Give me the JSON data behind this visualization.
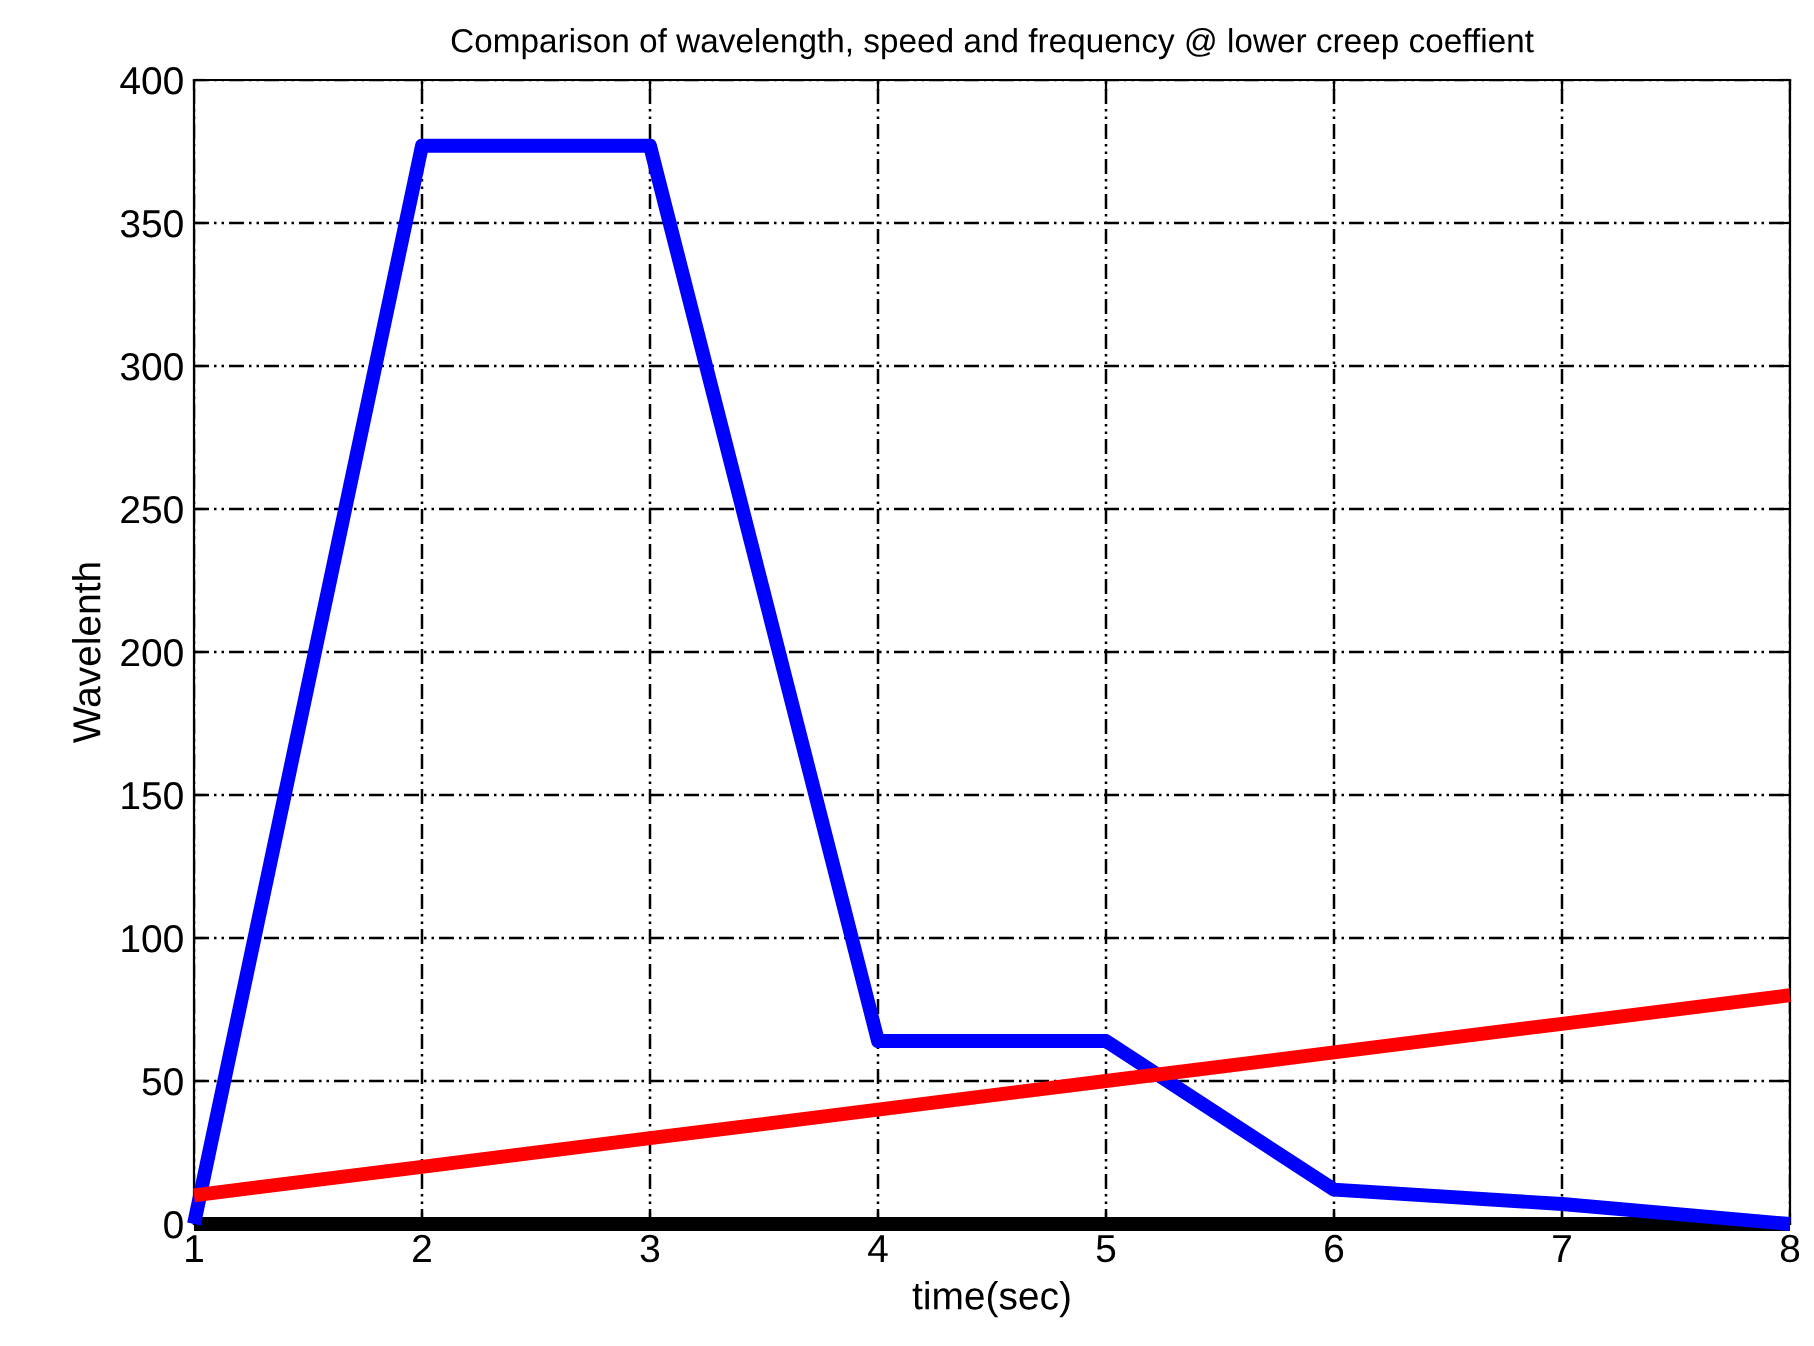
{
  "chart_data": {
    "type": "line",
    "title": "Comparison of wavelength, speed and frequency @ lower creep coeffient",
    "xlabel": "time(sec)",
    "ylabel": "Wavelenth",
    "x": [
      1,
      2,
      3,
      4,
      5,
      6,
      7,
      8
    ],
    "series": [
      {
        "color": "#0000ff",
        "values": [
          0,
          377,
          377,
          64,
          64,
          12,
          7,
          0
        ]
      },
      {
        "color": "#ff0000",
        "values": [
          10,
          20,
          30,
          40,
          50,
          60,
          70,
          80
        ]
      },
      {
        "color": "#000000",
        "values": [
          0,
          0,
          0,
          0,
          0,
          0,
          0,
          0
        ]
      }
    ],
    "xlim": [
      1,
      8
    ],
    "ylim": [
      0,
      400
    ],
    "xticks": [
      1,
      2,
      3,
      4,
      5,
      6,
      7,
      8
    ],
    "yticks": [
      0,
      50,
      100,
      150,
      200,
      250,
      300,
      350,
      400
    ],
    "grid": true,
    "marker": "none",
    "line_style": "solid"
  }
}
